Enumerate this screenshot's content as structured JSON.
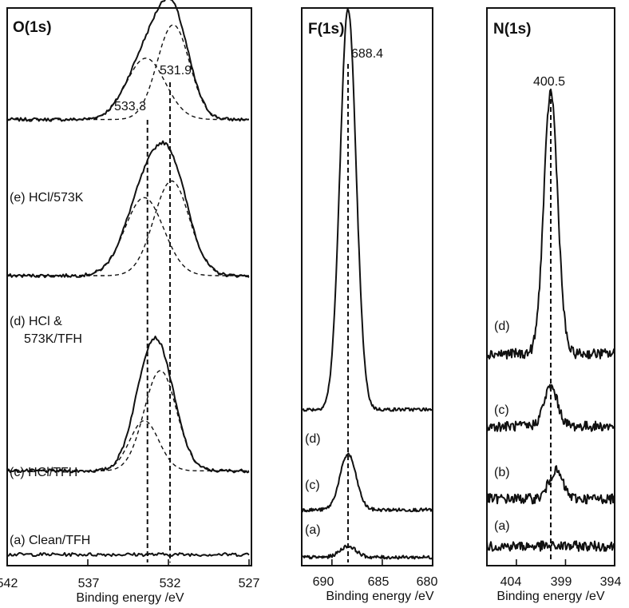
{
  "chart_data": [
    {
      "type": "line",
      "title": "O(1s)",
      "xlabel": "Binding energy /eV",
      "xlim": [
        542,
        527
      ],
      "x_reversed": true,
      "xticks": [
        "542",
        "537",
        "532",
        "527"
      ],
      "peak_markers": [
        {
          "x": 533.3,
          "label": "533.3"
        },
        {
          "x": 531.9,
          "label": "531.9"
        }
      ],
      "series": [
        {
          "name": "(e) HCl/573K",
          "offset": 0.8,
          "amp": 0.2,
          "fits": [
            {
              "center": 533.4,
              "width": 1.2,
              "height": 0.11
            },
            {
              "center": 531.7,
              "width": 1.0,
              "height": 0.17
            }
          ]
        },
        {
          "name": "(d) HCl &\n573K/TFH",
          "offset": 0.52,
          "amp": 0.22,
          "fits": [
            {
              "center": 533.5,
              "width": 1.2,
              "height": 0.14
            },
            {
              "center": 531.8,
              "width": 1.1,
              "height": 0.17
            }
          ]
        },
        {
          "name": "(c) HCl/TFH",
          "offset": 0.17,
          "amp": 0.24,
          "fits": [
            {
              "center": 533.5,
              "width": 0.9,
              "height": 0.09
            },
            {
              "center": 532.5,
              "width": 1.0,
              "height": 0.18
            }
          ]
        },
        {
          "name": "(a) Clean/TFH",
          "offset": 0.02,
          "amp": 0.0,
          "fits": []
        }
      ]
    },
    {
      "type": "line",
      "title": "F(1s)",
      "xlabel": "Binding energy /eV",
      "xlim": [
        693,
        680
      ],
      "x_reversed": true,
      "xticks": [
        "690",
        "685",
        "680"
      ],
      "peak_markers": [
        {
          "x": 688.4,
          "label": "688.4"
        }
      ],
      "series": [
        {
          "name": "(d)",
          "offset": 0.28,
          "amp": 0.72,
          "center": 688.4,
          "width": 0.8
        },
        {
          "name": "(c)",
          "offset": 0.1,
          "amp": 0.1,
          "center": 688.4,
          "width": 0.8
        },
        {
          "name": "(a)",
          "offset": 0.015,
          "amp": 0.02,
          "center": 688.4,
          "width": 0.8
        }
      ]
    },
    {
      "type": "line",
      "title": "N(1s)",
      "xlabel": "Binding energy /eV",
      "xlim": [
        407,
        394
      ],
      "x_reversed": true,
      "xticks": [
        "404",
        "399",
        "394"
      ],
      "peak_markers": [
        {
          "x": 400.5,
          "label": "400.5"
        }
      ],
      "series": [
        {
          "name": "(d)",
          "offset": 0.38,
          "amp": 0.47,
          "center": 400.5,
          "width": 0.7
        },
        {
          "name": "(c)",
          "offset": 0.25,
          "amp": 0.07,
          "center": 400.5,
          "width": 0.7
        },
        {
          "name": "(b)",
          "offset": 0.12,
          "amp": 0.05,
          "center": 400.0,
          "width": 0.7
        },
        {
          "name": "(a)",
          "offset": 0.035,
          "amp": 0.0,
          "center": 400.5,
          "width": 0.7
        }
      ]
    }
  ]
}
